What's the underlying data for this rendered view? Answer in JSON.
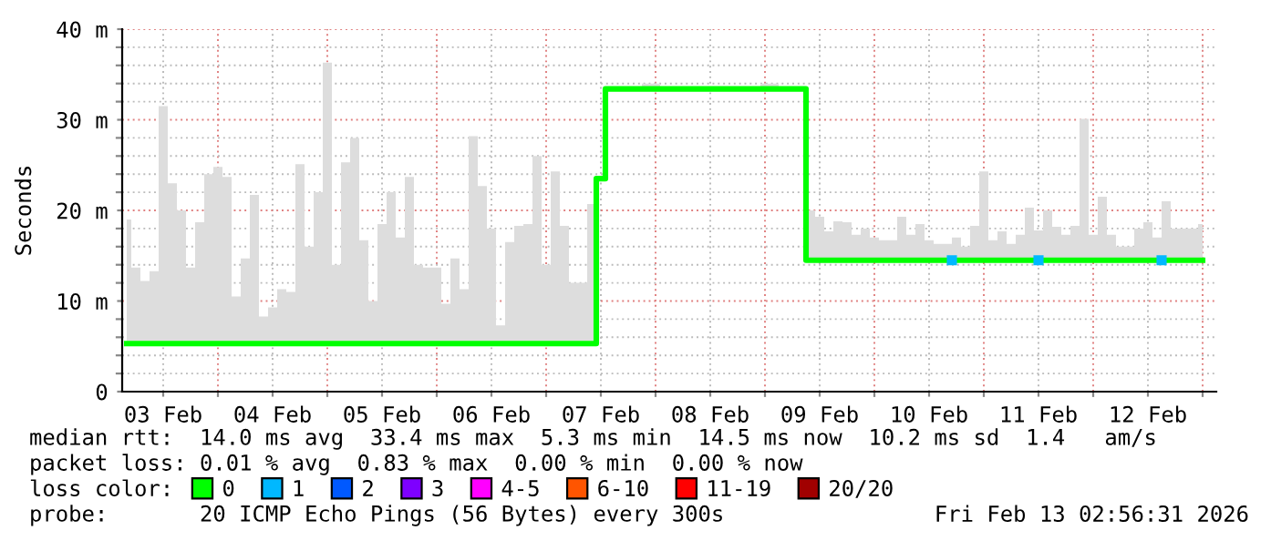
{
  "chart_data": {
    "type": "step",
    "ylabel": "Seconds",
    "legend_title": "loss color:",
    "legend": "bottom",
    "grid": true,
    "xlim": [
      "2026-02-03T03:00",
      "2026-02-13T03:00"
    ],
    "xticks": [
      {
        "value": "2026-02-03T12:00",
        "label": "03 Feb"
      },
      {
        "value": "2026-02-04T00:00",
        "label": null
      },
      {
        "value": "2026-02-04T12:00",
        "label": "04 Feb"
      },
      {
        "value": "2026-02-05T00:00",
        "label": null
      },
      {
        "value": "2026-02-05T12:00",
        "label": "05 Feb"
      },
      {
        "value": "2026-02-06T00:00",
        "label": null
      },
      {
        "value": "2026-02-06T12:00",
        "label": "06 Feb"
      },
      {
        "value": "2026-02-07T00:00",
        "label": null
      },
      {
        "value": "2026-02-07T12:00",
        "label": "07 Feb"
      },
      {
        "value": "2026-02-08T00:00",
        "label": null
      },
      {
        "value": "2026-02-08T12:00",
        "label": "08 Feb"
      },
      {
        "value": "2026-02-09T00:00",
        "label": null
      },
      {
        "value": "2026-02-09T12:00",
        "label": "09 Feb"
      },
      {
        "value": "2026-02-10T00:00",
        "label": null
      },
      {
        "value": "2026-02-10T12:00",
        "label": "10 Feb"
      },
      {
        "value": "2026-02-11T00:00",
        "label": null
      },
      {
        "value": "2026-02-11T12:00",
        "label": "11 Feb"
      },
      {
        "value": "2026-02-12T00:00",
        "label": null
      },
      {
        "value": "2026-02-12T12:00",
        "label": "12 Feb"
      },
      {
        "value": "2026-02-13T00:00",
        "label": null
      }
    ],
    "ylim": [
      0,
      40
    ],
    "yticks": [
      0,
      {
        "value": 2,
        "label": null
      },
      {
        "value": 4,
        "label": null
      },
      {
        "value": 6,
        "label": null
      },
      {
        "value": 8,
        "label": null
      },
      {
        "value": 10,
        "label": "10 m"
      },
      {
        "value": 12,
        "label": null
      },
      {
        "value": 14,
        "label": null
      },
      {
        "value": 16,
        "label": null
      },
      {
        "value": 18,
        "label": null
      },
      {
        "value": 20,
        "label": "20 m"
      },
      {
        "value": 22,
        "label": null
      },
      {
        "value": 24,
        "label": null
      },
      {
        "value": 26,
        "label": null
      },
      {
        "value": 28,
        "label": null
      },
      {
        "value": 30,
        "label": "30 m"
      },
      {
        "value": 32,
        "label": null
      },
      {
        "value": 34,
        "label": null
      },
      {
        "value": 36,
        "label": null
      },
      {
        "value": 38,
        "label": null
      },
      {
        "value": 40,
        "label": "40 m"
      }
    ],
    "x": [
      "2026-02-03T04:00",
      "2026-02-03T06:00",
      "2026-02-03T08:00",
      "2026-02-03T10:00",
      "2026-02-03T12:00",
      "2026-02-03T14:00",
      "2026-02-03T16:00",
      "2026-02-03T18:00",
      "2026-02-03T20:00",
      "2026-02-03T22:00",
      "2026-02-04T00:00",
      "2026-02-04T02:00",
      "2026-02-04T04:00",
      "2026-02-04T06:00",
      "2026-02-04T08:00",
      "2026-02-04T10:00",
      "2026-02-04T12:00",
      "2026-02-04T14:00",
      "2026-02-04T16:00",
      "2026-02-04T18:00",
      "2026-02-04T20:00",
      "2026-02-04T22:00",
      "2026-02-05T00:00",
      "2026-02-05T02:00",
      "2026-02-05T04:00",
      "2026-02-05T06:00",
      "2026-02-05T08:00",
      "2026-02-05T10:00",
      "2026-02-05T12:00",
      "2026-02-05T14:00",
      "2026-02-05T16:00",
      "2026-02-05T18:00",
      "2026-02-05T20:00",
      "2026-02-05T22:00",
      "2026-02-06T00:00",
      "2026-02-06T02:00",
      "2026-02-06T04:00",
      "2026-02-06T06:00",
      "2026-02-06T08:00",
      "2026-02-06T10:00",
      "2026-02-06T12:00",
      "2026-02-06T14:00",
      "2026-02-06T16:00",
      "2026-02-06T18:00",
      "2026-02-06T20:00",
      "2026-02-06T22:00",
      "2026-02-07T00:00",
      "2026-02-07T02:00",
      "2026-02-07T04:00",
      "2026-02-07T06:00",
      "2026-02-07T08:00",
      "2026-02-07T10:00",
      "2026-02-07T12:00",
      "2026-02-07T14:00",
      "2026-02-07T16:00",
      "2026-02-07T18:00",
      "2026-02-07T20:00",
      "2026-02-07T22:00",
      "2026-02-08T00:00",
      "2026-02-08T02:00",
      "2026-02-08T04:00",
      "2026-02-08T06:00",
      "2026-02-08T08:00",
      "2026-02-08T10:00",
      "2026-02-08T12:00",
      "2026-02-08T14:00",
      "2026-02-08T16:00",
      "2026-02-08T18:00",
      "2026-02-08T20:00",
      "2026-02-08T22:00",
      "2026-02-09T00:00",
      "2026-02-09T02:00",
      "2026-02-09T04:00",
      "2026-02-09T06:00",
      "2026-02-09T08:00",
      "2026-02-09T10:00",
      "2026-02-09T12:00",
      "2026-02-09T14:00",
      "2026-02-09T16:00",
      "2026-02-09T18:00",
      "2026-02-09T20:00",
      "2026-02-09T22:00",
      "2026-02-10T00:00",
      "2026-02-10T02:00",
      "2026-02-10T04:00",
      "2026-02-10T06:00",
      "2026-02-10T08:00",
      "2026-02-10T10:00",
      "2026-02-10T12:00",
      "2026-02-10T14:00",
      "2026-02-10T16:00",
      "2026-02-10T18:00",
      "2026-02-10T20:00",
      "2026-02-10T22:00",
      "2026-02-11T00:00",
      "2026-02-11T02:00",
      "2026-02-11T04:00",
      "2026-02-11T06:00",
      "2026-02-11T08:00",
      "2026-02-11T10:00",
      "2026-02-11T12:00",
      "2026-02-11T14:00",
      "2026-02-11T16:00",
      "2026-02-11T18:00",
      "2026-02-11T20:00",
      "2026-02-11T22:00",
      "2026-02-12T00:00",
      "2026-02-12T02:00",
      "2026-02-12T04:00",
      "2026-02-12T06:00",
      "2026-02-12T08:00",
      "2026-02-12T10:00",
      "2026-02-12T12:00",
      "2026-02-12T14:00",
      "2026-02-12T16:00",
      "2026-02-12T18:00",
      "2026-02-12T20:00",
      "2026-02-12T22:00",
      "2026-02-13T00:00"
    ],
    "series": [
      {
        "name": "0",
        "color": "#00ff00",
        "values": [
          5.3,
          5.3,
          5.3,
          5.3,
          5.3,
          5.3,
          5.3,
          5.3,
          5.3,
          5.3,
          5.3,
          5.3,
          5.3,
          5.3,
          5.3,
          5.3,
          5.3,
          5.3,
          5.3,
          5.3,
          5.3,
          5.3,
          5.3,
          5.3,
          5.3,
          5.3,
          5.3,
          5.3,
          5.3,
          5.3,
          5.3,
          5.3,
          5.3,
          5.3,
          5.3,
          5.3,
          5.3,
          5.3,
          5.3,
          5.3,
          5.3,
          5.3,
          5.3,
          5.3,
          5.3,
          5.3,
          5.3,
          5.3,
          5.3,
          5.3,
          5.3,
          5.3,
          23.5,
          33.4,
          33.4,
          33.4,
          33.4,
          33.4,
          33.4,
          33.4,
          33.4,
          33.4,
          33.4,
          33.4,
          33.4,
          33.4,
          33.4,
          33.4,
          33.4,
          33.4,
          33.4,
          33.4,
          33.4,
          33.4,
          33.4,
          14.5,
          14.5,
          14.5,
          14.5,
          14.5,
          14.5,
          14.5,
          14.5,
          14.5,
          14.5,
          14.5,
          14.5,
          14.5,
          14.5,
          14.5,
          14.5,
          14.5,
          14.5,
          14.5,
          14.5,
          14.5,
          14.5,
          14.5,
          14.5,
          14.5,
          14.5,
          14.5,
          14.5,
          14.5,
          14.5,
          14.5,
          14.5,
          14.5,
          14.5,
          14.5,
          14.5,
          14.5,
          14.5,
          14.5,
          14.5,
          14.5,
          14.5,
          14.5,
          14.5
        ],
        "lower": [
          5.3,
          5.3,
          5.3,
          5.3,
          5.3,
          5.3,
          5.3,
          5.3,
          5.3,
          5.3,
          5.3,
          5.3,
          5.3,
          5.3,
          5.3,
          5.3,
          5.3,
          5.3,
          5.3,
          5.3,
          5.3,
          5.3,
          5.3,
          5.3,
          5.3,
          5.3,
          5.3,
          5.3,
          5.3,
          5.3,
          5.3,
          5.3,
          5.3,
          5.3,
          5.3,
          5.3,
          5.3,
          5.3,
          5.3,
          5.3,
          5.3,
          5.3,
          5.3,
          5.3,
          5.3,
          5.3,
          5.3,
          5.3,
          5.3,
          5.3,
          5.3,
          5.3,
          23.5,
          33.4,
          33.4,
          33.4,
          33.4,
          33.4,
          33.4,
          33.4,
          33.4,
          33.4,
          33.4,
          33.4,
          33.4,
          33.4,
          33.4,
          33.4,
          33.4,
          33.4,
          33.4,
          33.4,
          33.4,
          33.4,
          33.4,
          14.5,
          14.5,
          14.5,
          14.5,
          14.5,
          14.5,
          14.5,
          14.5,
          14.5,
          14.5,
          14.5,
          14.5,
          14.5,
          14.5,
          14.5,
          14.5,
          14.5,
          14.5,
          14.5,
          14.5,
          14.5,
          14.5,
          14.5,
          14.5,
          14.5,
          14.5,
          14.5,
          14.5,
          14.5,
          14.5,
          14.5,
          14.5,
          14.5,
          14.5,
          14.5,
          14.5,
          14.5,
          14.5,
          14.5,
          14.5,
          14.5,
          14.5,
          14.5,
          14.5
        ],
        "upper": [
          19,
          13.7,
          12.2,
          13.3,
          31.5,
          23,
          20,
          13.7,
          18.7,
          24,
          24.8,
          23.7,
          10.5,
          14.7,
          21.7,
          8.3,
          9.3,
          11.3,
          11,
          25.1,
          16,
          22,
          36.3,
          14,
          25.3,
          28,
          16.7,
          10,
          18.5,
          22,
          17,
          23.7,
          14,
          13.7,
          13.7,
          9.7,
          14.7,
          11.3,
          28.2,
          22.7,
          18,
          7.3,
          16.5,
          18.3,
          18.5,
          26,
          14,
          24.3,
          18.3,
          12,
          12,
          20.7,
          23.5,
          33.4,
          33.4,
          33.4,
          33.4,
          34,
          34,
          33.4,
          33.4,
          33.4,
          33.4,
          33.4,
          33.4,
          33.4,
          33.4,
          33.4,
          33.4,
          33.4,
          34,
          34,
          33.4,
          33.4,
          33.4,
          20,
          19.3,
          17.7,
          18.8,
          18.7,
          17.3,
          18,
          17,
          16.7,
          16.7,
          19.3,
          17.3,
          18.5,
          16.7,
          16.3,
          16.3,
          17,
          16,
          18.3,
          24.3,
          16.7,
          17.7,
          16.3,
          17.3,
          20.3,
          17.8,
          20,
          18.2,
          17.3,
          18.3,
          30.1,
          17.3,
          21.5,
          17.3,
          16,
          16,
          18,
          18.7,
          17,
          21,
          18,
          18,
          18,
          18.5
        ]
      },
      {
        "name": "1",
        "color": "#00b8ff",
        "type": "scatter",
        "marker": "square",
        "x": [
          "2026-02-10T17:00",
          "2026-02-11T12:00",
          "2026-02-12T15:00"
        ],
        "values": [
          14.5,
          14.5,
          14.5
        ]
      },
      {
        "name": "2",
        "color": "#0059ff",
        "type": "scatter",
        "marker": "square",
        "x": [
          null
        ],
        "values": [
          null
        ]
      },
      {
        "name": "3",
        "color": "#7e00ff",
        "type": "scatter",
        "marker": "square",
        "x": [
          null
        ],
        "values": [
          null
        ]
      },
      {
        "name": "4-5",
        "color": "#ff00ff",
        "type": "scatter",
        "marker": "square",
        "x": [
          null
        ],
        "values": [
          null
        ]
      },
      {
        "name": "6-10",
        "color": "#ff5500",
        "type": "scatter",
        "marker": "square",
        "x": [
          null
        ],
        "values": [
          null
        ]
      },
      {
        "name": "11-19",
        "color": "#ff0000",
        "type": "scatter",
        "marker": "square",
        "x": [
          null
        ],
        "values": [
          null
        ]
      },
      {
        "name": "20/20",
        "color": "#a10000",
        "type": "scatter",
        "marker": "square",
        "x": [
          null
        ],
        "values": [
          null
        ]
      }
    ],
    "annotations": [
      "median rtt:  14.0 ms avg  33.4 ms max  5.3 ms min  14.5 ms now  10.2 ms sd  1.4   am/s",
      "packet loss: 0.01 % avg  0.83 % max  0.00 % min  0.00 % now",
      "probe:       20 ICMP Echo Pings (56 Bytes) every 300s",
      "Fri Feb 13 02:56:31 2026"
    ]
  }
}
